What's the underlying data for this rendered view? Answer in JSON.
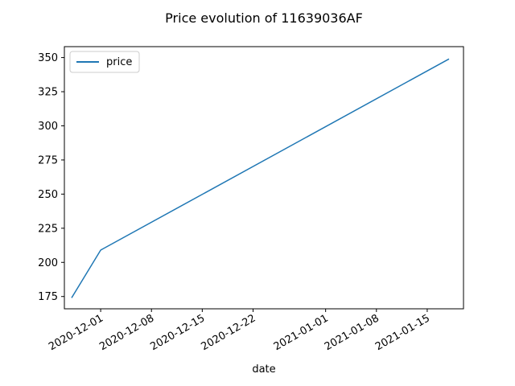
{
  "chart_data": {
    "type": "line",
    "title": "Price evolution of 11639036AF",
    "xlabel": "date",
    "ylabel": "",
    "x_ticks": [
      "2020-12-01",
      "2020-12-08",
      "2020-12-15",
      "2020-12-22",
      "2021-01-01",
      "2021-01-08",
      "2021-01-15"
    ],
    "y_ticks": [
      175,
      200,
      225,
      250,
      275,
      300,
      325,
      350
    ],
    "xlim": [
      "2020-11-26",
      "2021-01-20"
    ],
    "ylim": [
      166,
      358
    ],
    "legend_position": "upper-left",
    "grid": false,
    "series": [
      {
        "name": "price",
        "color": "#1f77b4",
        "x": [
          "2020-11-27",
          "2020-12-01",
          "2021-01-18"
        ],
        "y": [
          174,
          209,
          349
        ]
      }
    ]
  }
}
